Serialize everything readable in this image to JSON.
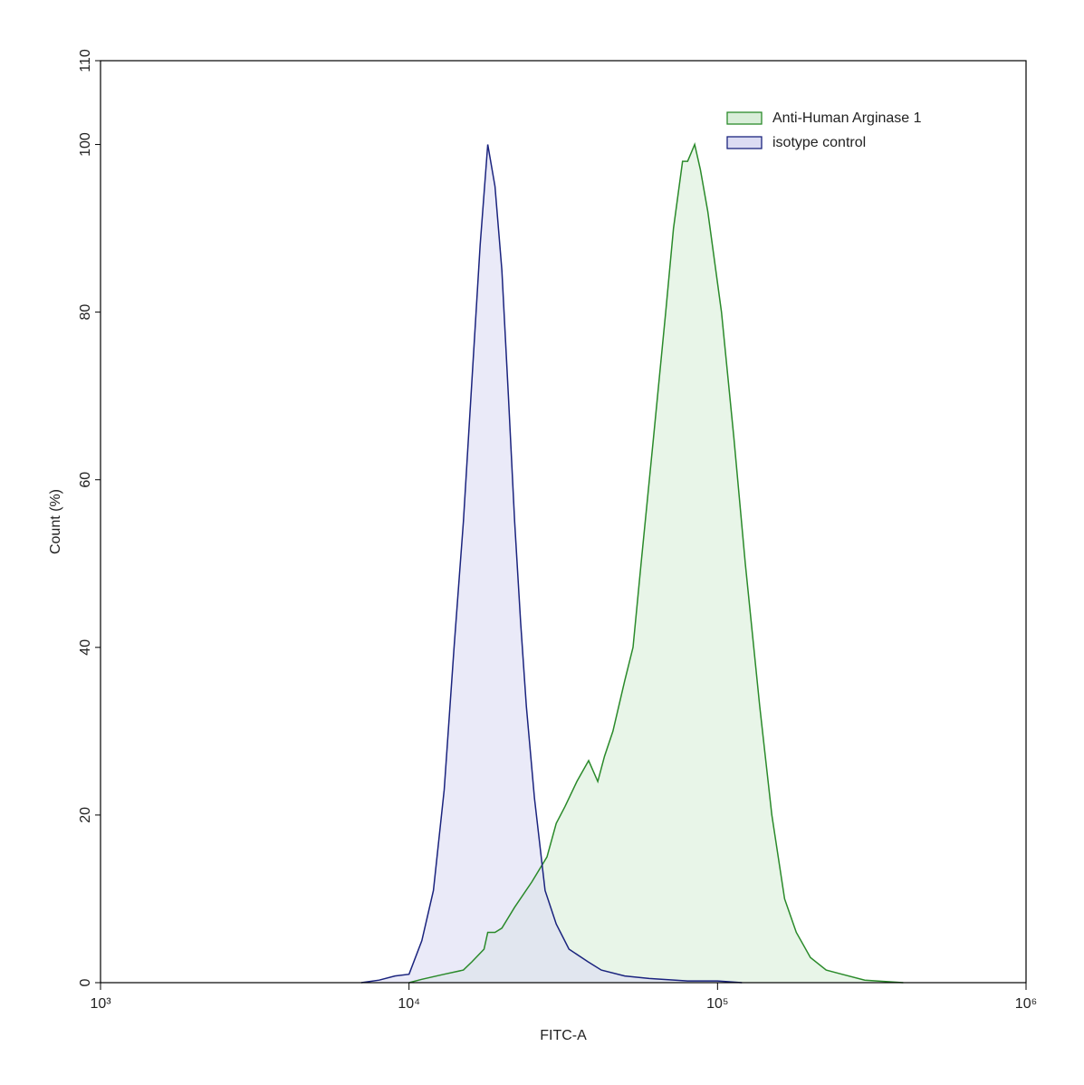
{
  "chart_data": {
    "type": "histogram-overlay",
    "xlabel": "FITC-A",
    "ylabel": "Count  (%)",
    "xscale": "log",
    "xlim": [
      1000,
      1000000
    ],
    "xticks": [
      {
        "value": 1000,
        "label": "10³"
      },
      {
        "value": 10000,
        "label": "10⁴"
      },
      {
        "value": 100000,
        "label": "10⁵"
      },
      {
        "value": 1000000,
        "label": "10⁶"
      }
    ],
    "ylim": [
      0,
      110
    ],
    "yticks": [
      0,
      20,
      40,
      60,
      80,
      100,
      110
    ],
    "legend": "upper right",
    "series": [
      {
        "name": "Anti-Human Arginase 1",
        "color": "#2a8a2a",
        "fill": "#d9eed9",
        "x": [
          10000,
          11000,
          13000,
          15000,
          16000,
          17500,
          18000,
          19000,
          20000,
          22000,
          25000,
          28000,
          30000,
          32000,
          35000,
          38200,
          40900,
          43000,
          45800,
          50000,
          53200,
          56500,
          62000,
          67900,
          72000,
          77000,
          80000,
          84300,
          88000,
          93000,
          103000,
          113000,
          123000,
          137000,
          150000,
          165000,
          180000,
          200000,
          225000,
          253000,
          300000,
          400000
        ],
        "values": [
          0,
          0.4,
          1,
          1.5,
          2.5,
          4,
          6,
          6,
          6.5,
          9,
          12,
          15,
          19,
          21,
          24,
          26.5,
          24,
          27,
          30,
          36,
          40,
          50,
          65,
          80,
          90,
          98,
          98,
          100,
          97,
          92,
          80,
          65,
          50,
          33,
          20,
          10,
          6,
          3,
          1.5,
          1,
          0.3,
          0
        ]
      },
      {
        "name": "isotype control",
        "color": "#1a237e",
        "fill": "#dcdcf3",
        "x": [
          7000,
          8000,
          9000,
          10000,
          11000,
          12000,
          13000,
          14000,
          15000,
          16000,
          17000,
          18000,
          19000,
          20000,
          21000,
          22000,
          23000,
          24000,
          25500,
          27600,
          30000,
          33000,
          38000,
          42000,
          50000,
          60000,
          80000,
          100000,
          120000
        ],
        "values": [
          0,
          0.3,
          0.8,
          1,
          5,
          11,
          23,
          40,
          55,
          72,
          88,
          100,
          95,
          85,
          70,
          55,
          43,
          33,
          22,
          11,
          7,
          4,
          2.5,
          1.5,
          0.8,
          0.5,
          0.2,
          0.2,
          0
        ]
      }
    ]
  }
}
